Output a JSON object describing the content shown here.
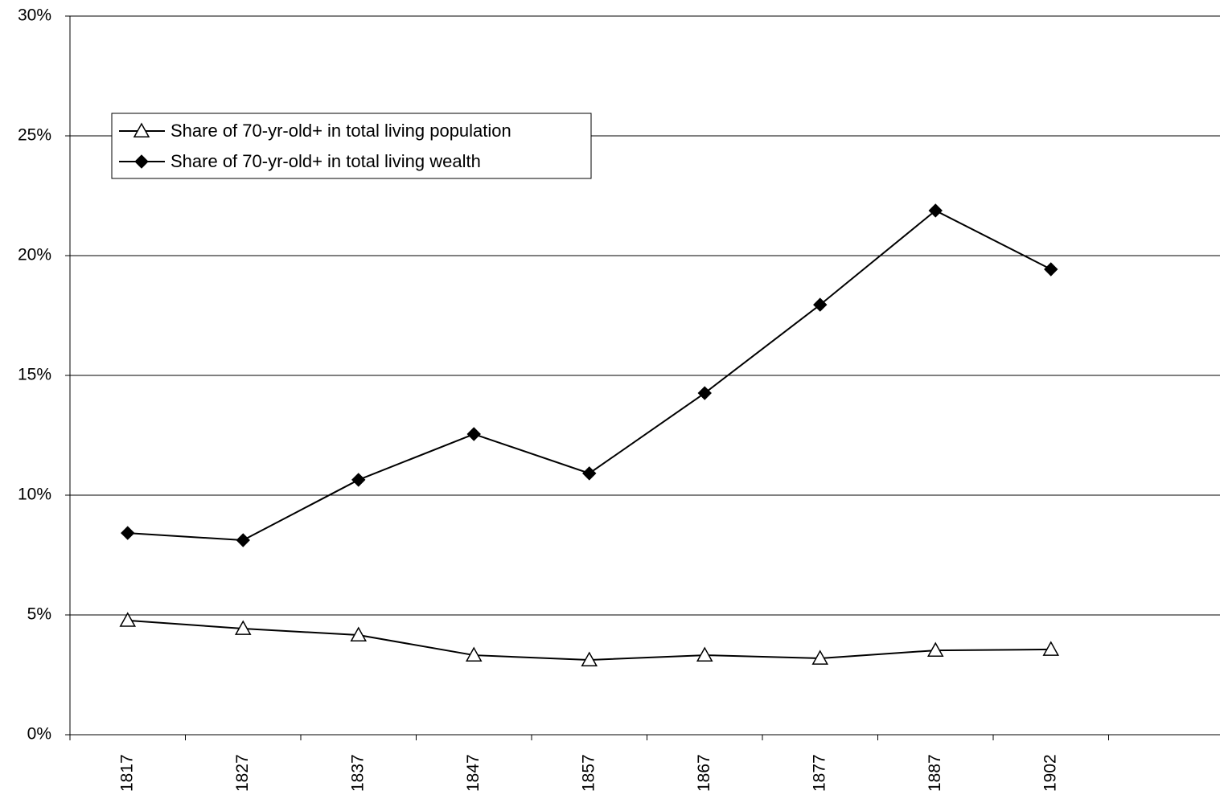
{
  "chart_data": {
    "type": "line",
    "categories": [
      "1817",
      "1827",
      "1837",
      "1847",
      "1857",
      "1867",
      "1877",
      "1887",
      "1902",
      null
    ],
    "series": [
      {
        "name": "Share of 70-yr-old+ in total living population",
        "color": "#000000",
        "marker": "triangle-open",
        "values": [
          4.77,
          4.43,
          4.16,
          3.32,
          3.12,
          3.32,
          3.19,
          3.52,
          3.56,
          null
        ]
      },
      {
        "name": "Share of 70-yr-old+ in total living wealth",
        "color": "#000000",
        "marker": "diamond",
        "values": [
          8.42,
          8.12,
          10.64,
          12.55,
          10.91,
          14.26,
          17.95,
          21.88,
          19.43,
          null
        ]
      }
    ],
    "ylim": [
      0,
      30
    ],
    "yticks": [
      {
        "value": 0,
        "label": "0%"
      },
      {
        "value": 5,
        "label": "5%"
      },
      {
        "value": 10,
        "label": "10%"
      },
      {
        "value": 15,
        "label": "15%"
      },
      {
        "value": 20,
        "label": "20%"
      },
      {
        "value": 25,
        "label": "25%"
      },
      {
        "value": 30,
        "label": "30%"
      }
    ],
    "grid": true,
    "legend": "upper left"
  }
}
